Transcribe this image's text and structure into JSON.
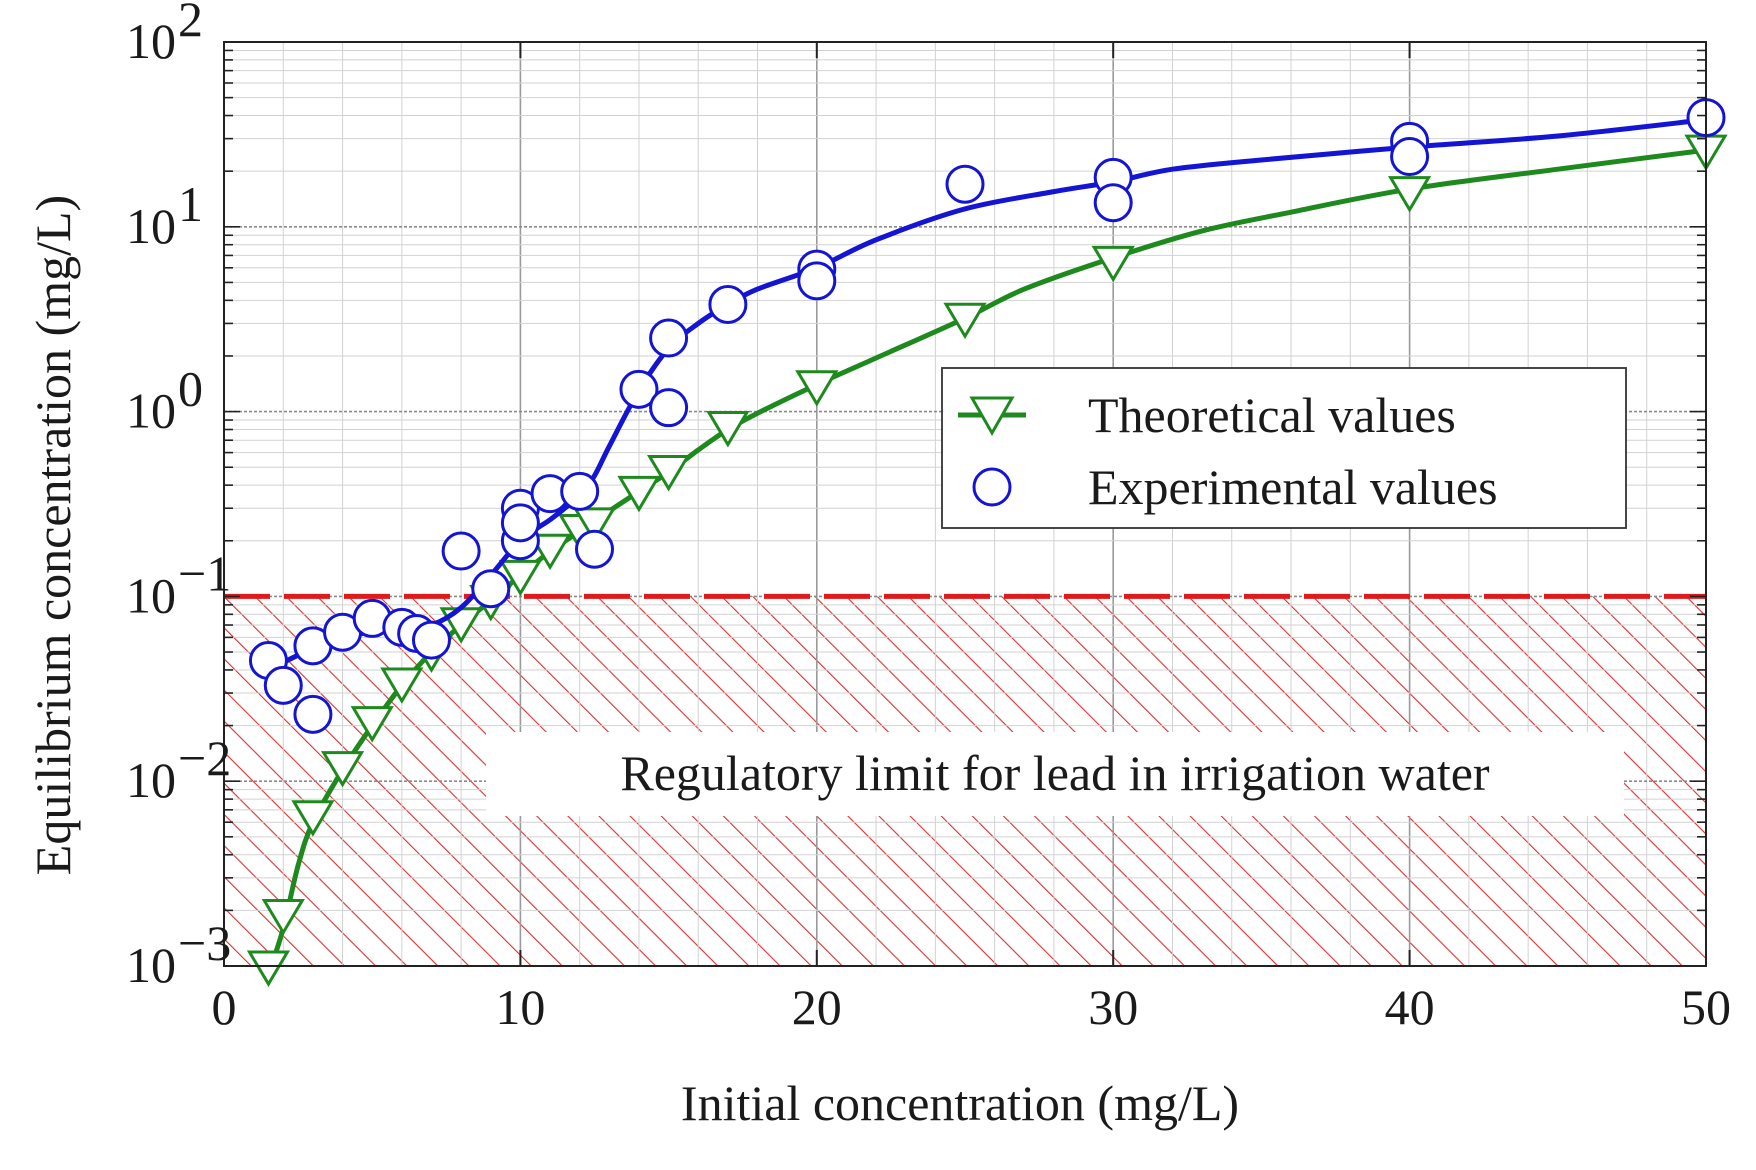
{
  "chart_data": {
    "type": "scatter",
    "title": "",
    "xlabel": "Initial concentration (mg/L)",
    "ylabel": "Equilibrium concentration (mg/L)",
    "xlim": [
      0,
      50
    ],
    "ylim": [
      0.001,
      100
    ],
    "yscale": "log",
    "grid": true,
    "x_ticks": [
      0,
      10,
      20,
      30,
      40,
      50
    ],
    "y_ticks": [
      {
        "value": 0.001,
        "base": "10",
        "exp": "−3"
      },
      {
        "value": 0.01,
        "base": "10",
        "exp": "−2"
      },
      {
        "value": 0.1,
        "base": "10",
        "exp": "−1"
      },
      {
        "value": 1,
        "base": "10",
        "exp": "0"
      },
      {
        "value": 10,
        "base": "10",
        "exp": "1"
      },
      {
        "value": 100,
        "base": "10",
        "exp": "2"
      }
    ],
    "legend": {
      "position": "center-right"
    },
    "series": [
      {
        "name": "Theoretical values",
        "color": "#1e8a1e",
        "marker": "triangle-down",
        "points": [
          [
            1.5,
            0.001
          ],
          [
            2,
            0.0019
          ],
          [
            3,
            0.0065
          ],
          [
            4,
            0.012
          ],
          [
            5,
            0.021
          ],
          [
            6,
            0.034
          ],
          [
            7,
            0.05
          ],
          [
            8,
            0.072
          ],
          [
            9,
            0.095
          ],
          [
            10,
            0.13
          ],
          [
            11,
            0.18
          ],
          [
            12,
            0.23
          ],
          [
            12.5,
            0.25
          ],
          [
            14,
            0.37
          ],
          [
            15,
            0.48
          ],
          [
            17,
            0.83
          ],
          [
            20,
            1.38
          ],
          [
            25,
            3.2
          ],
          [
            30,
            6.5
          ],
          [
            40,
            15.5
          ],
          [
            50,
            26
          ]
        ],
        "curve": [
          [
            1.5,
            0.0009
          ],
          [
            2,
            0.0016
          ],
          [
            2.5,
            0.0035
          ],
          [
            3,
            0.006
          ],
          [
            4,
            0.0115
          ],
          [
            5,
            0.02
          ],
          [
            6,
            0.033
          ],
          [
            7,
            0.05
          ],
          [
            8,
            0.07
          ],
          [
            9,
            0.095
          ],
          [
            10,
            0.13
          ],
          [
            11,
            0.175
          ],
          [
            12,
            0.225
          ],
          [
            13,
            0.29
          ],
          [
            14,
            0.37
          ],
          [
            15,
            0.47
          ],
          [
            16,
            0.62
          ],
          [
            17,
            0.8
          ],
          [
            18,
            0.98
          ],
          [
            20,
            1.4
          ],
          [
            22,
            1.95
          ],
          [
            25,
            3.2
          ],
          [
            27,
            4.6
          ],
          [
            30,
            6.8
          ],
          [
            33,
            9.5
          ],
          [
            36,
            12
          ],
          [
            40,
            16
          ],
          [
            45,
            20.5
          ],
          [
            50,
            26
          ]
        ]
      },
      {
        "name": "Experimental values",
        "color": "#1414d4",
        "marker": "circle",
        "points": [
          [
            1.5,
            0.045
          ],
          [
            2,
            0.033
          ],
          [
            3,
            0.054
          ],
          [
            3,
            0.023
          ],
          [
            4,
            0.064
          ],
          [
            5,
            0.076
          ],
          [
            6,
            0.068
          ],
          [
            6.5,
            0.063
          ],
          [
            7,
            0.058
          ],
          [
            8,
            0.176
          ],
          [
            9,
            0.11
          ],
          [
            10,
            0.3
          ],
          [
            10,
            0.2
          ],
          [
            10,
            0.25
          ],
          [
            11,
            0.36
          ],
          [
            12,
            0.37
          ],
          [
            12.5,
            0.18
          ],
          [
            14,
            1.32
          ],
          [
            15,
            2.5
          ],
          [
            15,
            1.05
          ],
          [
            17,
            3.8
          ],
          [
            20,
            5.9
          ],
          [
            20,
            5.1
          ],
          [
            25,
            17
          ],
          [
            30,
            18.5
          ],
          [
            30,
            13.5
          ],
          [
            40,
            29
          ],
          [
            40,
            24
          ],
          [
            50,
            39
          ]
        ],
        "curve": [
          [
            1.5,
            0.04
          ],
          [
            3,
            0.052
          ],
          [
            5,
            0.065
          ],
          [
            6,
            0.067
          ],
          [
            7,
            0.07
          ],
          [
            8,
            0.087
          ],
          [
            9,
            0.13
          ],
          [
            10,
            0.2
          ],
          [
            11,
            0.26
          ],
          [
            11.5,
            0.3
          ],
          [
            12,
            0.35
          ],
          [
            12.5,
            0.45
          ],
          [
            13,
            0.65
          ],
          [
            14,
            1.3
          ],
          [
            15,
            2.2
          ],
          [
            16,
            3.0
          ],
          [
            17,
            3.8
          ],
          [
            18,
            4.6
          ],
          [
            20,
            6.0
          ],
          [
            22,
            8.5
          ],
          [
            25,
            12.5
          ],
          [
            28,
            15.5
          ],
          [
            30,
            17.5
          ],
          [
            32,
            20.5
          ],
          [
            35,
            23
          ],
          [
            40,
            27
          ],
          [
            45,
            31
          ],
          [
            50,
            38
          ]
        ]
      }
    ],
    "reference_line": {
      "value": 0.1,
      "color": "#e01a1a",
      "style": "dashed"
    },
    "shaded_region": {
      "from": 0.001,
      "to": 0.1,
      "pattern": "hatch",
      "color": "#e03030"
    },
    "annotations": [
      "Regulatory limit for lead in irrigation water"
    ]
  }
}
